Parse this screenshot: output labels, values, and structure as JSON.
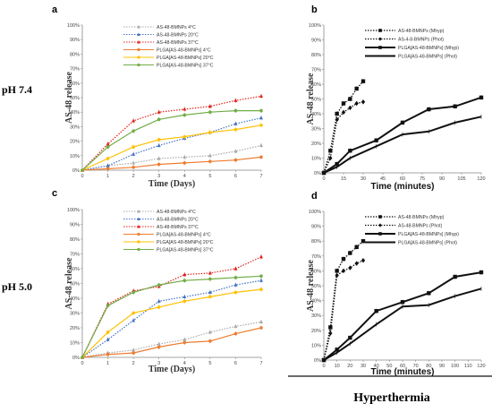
{
  "row_labels": [
    "pH 7.4",
    "pH 5.0"
  ],
  "footer": "Hyperthermia",
  "chart_data": [
    {
      "type": "line",
      "panel": "a",
      "xlabel": "Time (Days)",
      "ylabel": "AS-48 release",
      "x": [
        0,
        1,
        2,
        3,
        4,
        5,
        6,
        7
      ],
      "xlim": [
        0,
        7
      ],
      "ylim": [
        0,
        100
      ],
      "yticks": [
        "0%",
        "10%",
        "20%",
        "30%",
        "40%",
        "50%",
        "60%",
        "70%",
        "80%",
        "90%",
        "100%"
      ],
      "xticks": [
        "0",
        "1",
        "2",
        "3",
        "4",
        "5",
        "6",
        "7"
      ],
      "grid": false,
      "legend": "top-center",
      "series": [
        {
          "name": "AS-48-BMNPs 4°C",
          "color": "#aaaaaa",
          "marker": "triangle",
          "dotted": true,
          "values": [
            0,
            3,
            5,
            8,
            9,
            10,
            13,
            17
          ]
        },
        {
          "name": "AS-48-BMNPs 20°C",
          "color": "#4472c4",
          "marker": "triangle",
          "dotted": true,
          "values": [
            0,
            3,
            11,
            17,
            22,
            26,
            32,
            36
          ]
        },
        {
          "name": "AS-48-BMNPs 37°C",
          "color": "#e0201b",
          "marker": "triangle",
          "dotted": true,
          "values": [
            0,
            18,
            34,
            40,
            42,
            44,
            48,
            51
          ]
        },
        {
          "name": "PLGA[AS-48-BMNPs] 4°C",
          "color": "#ed7d31",
          "marker": "circle",
          "dotted": false,
          "values": [
            0,
            1,
            2,
            4,
            5,
            6,
            7,
            9
          ]
        },
        {
          "name": "PLGA[AS-48-BMNPs] 20°C",
          "color": "#ffc000",
          "marker": "circle",
          "dotted": false,
          "values": [
            0,
            8,
            16,
            21,
            23,
            26,
            28,
            31
          ]
        },
        {
          "name": "PLGA[AS-48-BMNPs] 37°C",
          "color": "#70ad47",
          "marker": "circle",
          "dotted": false,
          "values": [
            0,
            16,
            27,
            35,
            38,
            40,
            41,
            41
          ]
        }
      ]
    },
    {
      "type": "line",
      "panel": "b",
      "xlabel": "Time (minutes)",
      "ylabel": "AS-48 release",
      "xlim": [
        0,
        120
      ],
      "ylim": [
        0,
        100
      ],
      "yticks": [
        "0%",
        "10%",
        "20%",
        "30%",
        "40%",
        "50%",
        "60%",
        "70%",
        "80%",
        "90%",
        "100%"
      ],
      "xticks": [
        "0",
        "15",
        "30",
        "45",
        "60",
        "75",
        "90",
        "105",
        "120"
      ],
      "grid": false,
      "legend": "top-center",
      "series": [
        {
          "name": "AS-48-BMNPs (Mhyp)",
          "color": "#111111",
          "marker": "square",
          "dotted": true,
          "x": [
            0,
            5,
            10,
            15,
            20,
            25,
            30
          ],
          "values": [
            0,
            15,
            40,
            47,
            50,
            57,
            62
          ]
        },
        {
          "name": "AS-4-8-BMNPs (Phot)",
          "color": "#111111",
          "marker": "diamond",
          "dotted": true,
          "x": [
            0,
            5,
            10,
            15,
            20,
            25,
            30
          ],
          "values": [
            0,
            10,
            36,
            41,
            44,
            47,
            48
          ]
        },
        {
          "name": "PLGA[AS-48-BMNPs] (Mhyp)",
          "color": "#111111",
          "marker": "square",
          "dotted": false,
          "x": [
            0,
            10,
            20,
            40,
            60,
            80,
            100,
            120
          ],
          "values": [
            0,
            6,
            15,
            22,
            34,
            43,
            45,
            51
          ]
        },
        {
          "name": "PLGA[AS-48-BMNPs] (Phot)",
          "color": "#111111",
          "marker": "none",
          "dotted": false,
          "x": [
            0,
            10,
            20,
            40,
            60,
            80,
            100,
            120
          ],
          "values": [
            0,
            4,
            10,
            18,
            26,
            28,
            34,
            38
          ]
        }
      ]
    },
    {
      "type": "line",
      "panel": "c",
      "xlabel": "Time (Days)",
      "ylabel": "AS-48 release",
      "x": [
        0,
        1,
        2,
        3,
        4,
        5,
        6,
        7
      ],
      "xlim": [
        0,
        7
      ],
      "ylim": [
        0,
        100
      ],
      "yticks": [
        "0%",
        "10%",
        "20%",
        "30%",
        "40%",
        "50%",
        "60%",
        "70%",
        "80%",
        "90%",
        "100%"
      ],
      "xticks": [
        "0",
        "1",
        "2",
        "3",
        "4",
        "5",
        "6",
        "7"
      ],
      "grid": false,
      "legend": "top-center",
      "series": [
        {
          "name": "AS-48-BMNPs 4°C",
          "color": "#aaaaaa",
          "marker": "triangle",
          "dotted": true,
          "values": [
            0,
            3,
            5,
            9,
            12,
            17,
            21,
            24
          ]
        },
        {
          "name": "AS-48-BMNPs 20°C",
          "color": "#4472c4",
          "marker": "triangle",
          "dotted": true,
          "values": [
            0,
            12,
            25,
            38,
            41,
            44,
            49,
            52
          ]
        },
        {
          "name": "AS-48-BMNPs 37°C",
          "color": "#e0201b",
          "marker": "triangle",
          "dotted": true,
          "values": [
            0,
            36,
            45,
            48,
            56,
            57,
            60,
            68
          ]
        },
        {
          "name": "PLGA[AS-48-BMNPs] 4°C",
          "color": "#ed7d31",
          "marker": "circle",
          "dotted": false,
          "values": [
            0,
            2,
            3,
            7,
            10,
            11,
            16,
            20
          ]
        },
        {
          "name": "PLGA[AS-48-BMNPs] 20°C",
          "color": "#ffc000",
          "marker": "circle",
          "dotted": false,
          "values": [
            0,
            17,
            30,
            34,
            38,
            41,
            44,
            46
          ]
        },
        {
          "name": "PLGA[AS-48-BMNPs] 37°C",
          "color": "#70ad47",
          "marker": "circle",
          "dotted": false,
          "values": [
            0,
            35,
            44,
            49,
            52,
            53,
            54,
            55
          ]
        }
      ]
    },
    {
      "type": "line",
      "panel": "d",
      "xlabel": "Time (minutes)",
      "ylabel": "AS-48 release",
      "xlim": [
        0,
        120
      ],
      "ylim": [
        0,
        100
      ],
      "yticks": [
        "0%",
        "10%",
        "20%",
        "30%",
        "40%",
        "50%",
        "60%",
        "70%",
        "80%",
        "90%",
        "100%"
      ],
      "xticks": [
        "0",
        "10",
        "20",
        "30",
        "40",
        "50",
        "60",
        "70",
        "80",
        "90",
        "100",
        "110",
        "120"
      ],
      "grid": false,
      "legend": "top-center",
      "series": [
        {
          "name": "AS-48-BMNPs (Mhyp)",
          "color": "#111111",
          "marker": "square",
          "dotted": true,
          "x": [
            0,
            5,
            10,
            15,
            20,
            25,
            30
          ],
          "values": [
            0,
            22,
            60,
            68,
            72,
            76,
            80
          ]
        },
        {
          "name": "AS-48-BMNPs (Phot)",
          "color": "#111111",
          "marker": "diamond",
          "dotted": true,
          "x": [
            0,
            5,
            10,
            15,
            20,
            25,
            30
          ],
          "values": [
            0,
            18,
            57,
            60,
            62,
            65,
            67
          ]
        },
        {
          "name": "PLGA[AS-48-BMNPs] (Mhyp)",
          "color": "#111111",
          "marker": "square",
          "dotted": false,
          "x": [
            0,
            10,
            20,
            40,
            60,
            80,
            100,
            120
          ],
          "values": [
            0,
            7,
            15,
            33,
            39,
            45,
            56,
            59
          ]
        },
        {
          "name": "PLGA[AS-48-BMNPs] (Phot)",
          "color": "#111111",
          "marker": "none",
          "dotted": false,
          "x": [
            0,
            10,
            20,
            40,
            60,
            80,
            100,
            120
          ],
          "values": [
            0,
            5,
            11,
            24,
            36,
            37,
            43,
            48
          ]
        }
      ]
    }
  ]
}
